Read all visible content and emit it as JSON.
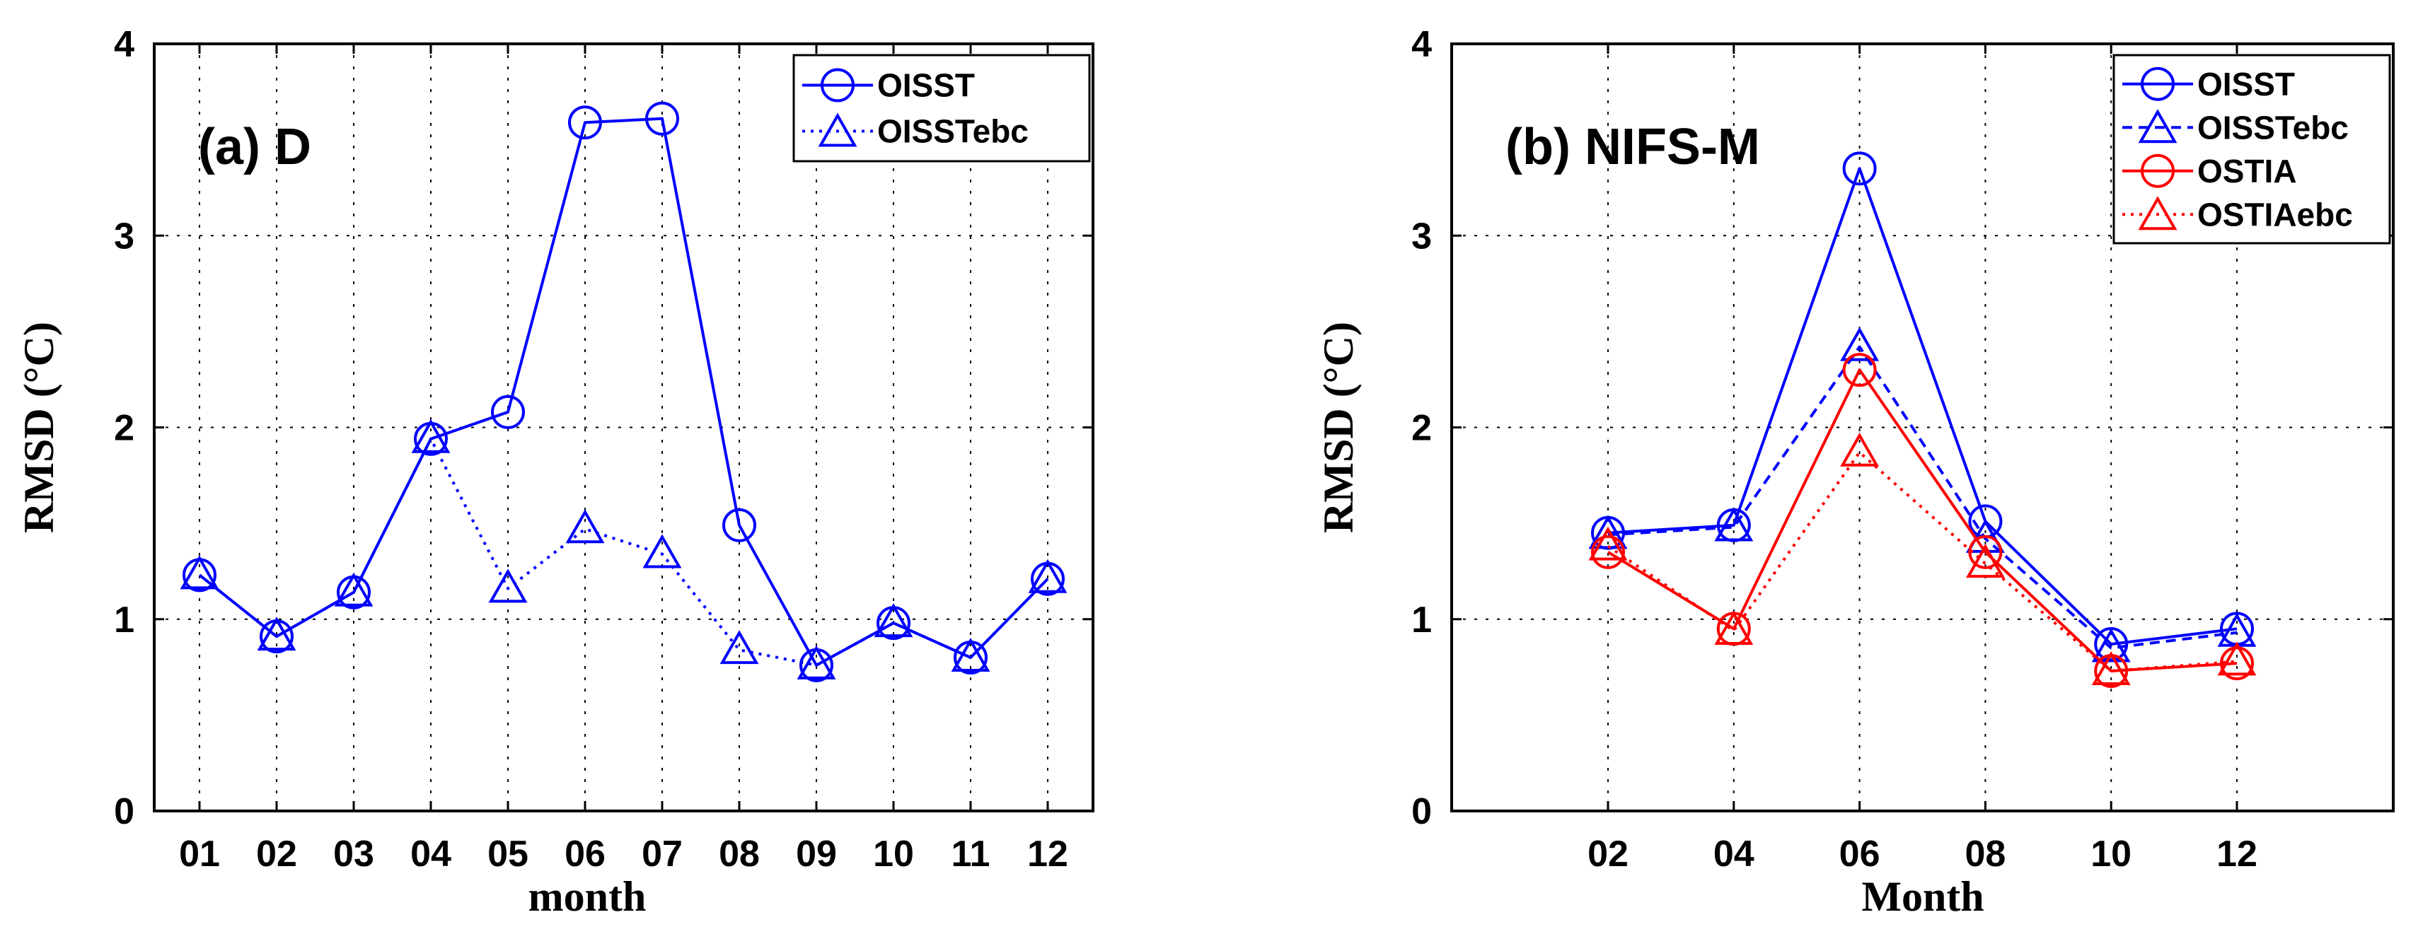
{
  "chart_data": [
    {
      "type": "line",
      "panel": "left",
      "title": "(a) D",
      "xlabel": "month",
      "ylabel": "RMSD (°C)",
      "ylim": [
        0,
        4
      ],
      "yticks": [
        "0",
        "1",
        "2",
        "3",
        "4"
      ],
      "categories": [
        "01",
        "02",
        "03",
        "04",
        "05",
        "06",
        "07",
        "08",
        "09",
        "10",
        "11",
        "12"
      ],
      "legend_position": "top-right",
      "grid": true,
      "series": [
        {
          "name": "OISST",
          "color": "#0000ff",
          "line": "solid",
          "marker": "circle",
          "values": [
            1.23,
            0.91,
            1.14,
            1.94,
            2.08,
            3.59,
            3.61,
            1.49,
            0.76,
            0.98,
            0.8,
            1.21
          ]
        },
        {
          "name": "OISSTebc",
          "color": "#0000ff",
          "line": "dotted",
          "marker": "triangle",
          "values": [
            1.23,
            0.91,
            1.14,
            1.94,
            1.16,
            1.47,
            1.34,
            0.84,
            0.76,
            0.98,
            0.8,
            1.21
          ]
        }
      ]
    },
    {
      "type": "line",
      "panel": "right",
      "title": "(b) NIFS-M",
      "xlabel": "Month",
      "ylabel": "RMSD (°C)",
      "ylim": [
        0,
        4
      ],
      "yticks": [
        "0",
        "1",
        "2",
        "3",
        "4"
      ],
      "categories": [
        "02",
        "04",
        "06",
        "08",
        "10",
        "12"
      ],
      "legend_position": "top-right",
      "grid": true,
      "series": [
        {
          "name": "OISST",
          "color": "#0000ff",
          "line": "solid",
          "marker": "circle",
          "values": [
            1.45,
            1.49,
            3.35,
            1.51,
            0.87,
            0.95
          ]
        },
        {
          "name": "OISSTebc",
          "color": "#0000ff",
          "line": "dashed",
          "marker": "triangle",
          "values": [
            1.44,
            1.48,
            2.42,
            1.42,
            0.85,
            0.93
          ]
        },
        {
          "name": "OSTIA",
          "color": "#ff0000",
          "line": "solid",
          "marker": "circle",
          "values": [
            1.35,
            0.95,
            2.3,
            1.35,
            0.73,
            0.77
          ]
        },
        {
          "name": "OSTIAebc",
          "color": "#ff0000",
          "line": "dotted",
          "marker": "triangle",
          "values": [
            1.38,
            0.94,
            1.87,
            1.29,
            0.73,
            0.78
          ]
        }
      ]
    }
  ]
}
